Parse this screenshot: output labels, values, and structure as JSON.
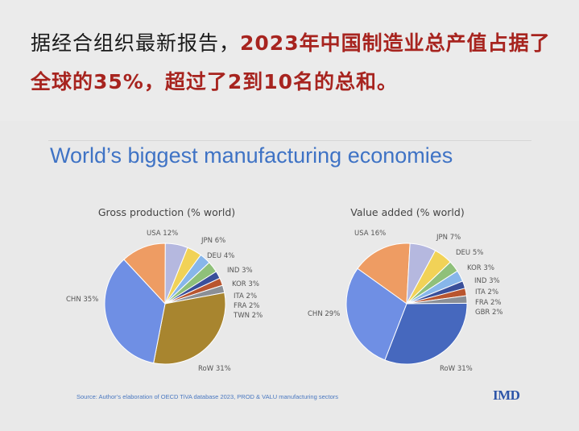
{
  "headline": {
    "part1": "据经合组织最新报告，",
    "part2": "2023年中国制造业总产值占据了全球的35%，超过了2到10名的总和。"
  },
  "slide": {
    "title": "World’s biggest manufacturing economies",
    "source": "Source: Author’s elaboration of OECD   TiVA database 2023, PROD & VALU manufacturing sectors",
    "logo": "IMD"
  },
  "colors": {
    "CHN": "#6f8fe4",
    "USA": "#ee9c63",
    "JPN": "#b5b8df",
    "DEU": "#f1d257",
    "IND": "#87b6ea",
    "KOR": "#8fc07a",
    "ITA": "#3a4f9a",
    "FRA": "#b9552f",
    "TWN": "#8b8f96",
    "GBR": "#8b8f96",
    "RoW_left": "#a8852f",
    "RoW_right": "#4668be"
  },
  "chart_data": [
    {
      "type": "pie",
      "title": "Gross production  (% world)",
      "slices": [
        {
          "label": "USA",
          "value": 12,
          "text": "USA 12%"
        },
        {
          "label": "JPN",
          "value": 6,
          "text": "JPN 6%"
        },
        {
          "label": "DEU",
          "value": 4,
          "text": "DEU 4%"
        },
        {
          "label": "IND",
          "value": 3,
          "text": "IND 3%"
        },
        {
          "label": "KOR",
          "value": 3,
          "text": "KOR 3%"
        },
        {
          "label": "ITA",
          "value": 2,
          "text": "ITA 2%"
        },
        {
          "label": "FRA",
          "value": 2,
          "text": "FRA 2%"
        },
        {
          "label": "TWN",
          "value": 2,
          "text": "TWN 2%"
        },
        {
          "label": "RoW",
          "value": 31,
          "text": "RoW 31%"
        },
        {
          "label": "CHN",
          "value": 35,
          "text": "CHN 35%"
        }
      ]
    },
    {
      "type": "pie",
      "title": "Value added (% world)",
      "slices": [
        {
          "label": "USA",
          "value": 16,
          "text": "USA 16%"
        },
        {
          "label": "JPN",
          "value": 7,
          "text": "JPN 7%"
        },
        {
          "label": "DEU",
          "value": 5,
          "text": "DEU 5%"
        },
        {
          "label": "KOR",
          "value": 3,
          "text": "KOR 3%"
        },
        {
          "label": "IND",
          "value": 3,
          "text": "IND 3%"
        },
        {
          "label": "ITA",
          "value": 2,
          "text": "ITA 2%"
        },
        {
          "label": "FRA",
          "value": 2,
          "text": "FRA 2%"
        },
        {
          "label": "GBR",
          "value": 2,
          "text": "GBR 2%"
        },
        {
          "label": "RoW",
          "value": 31,
          "text": "RoW 31%"
        },
        {
          "label": "CHN",
          "value": 29,
          "text": "CHN 29%"
        }
      ]
    }
  ]
}
